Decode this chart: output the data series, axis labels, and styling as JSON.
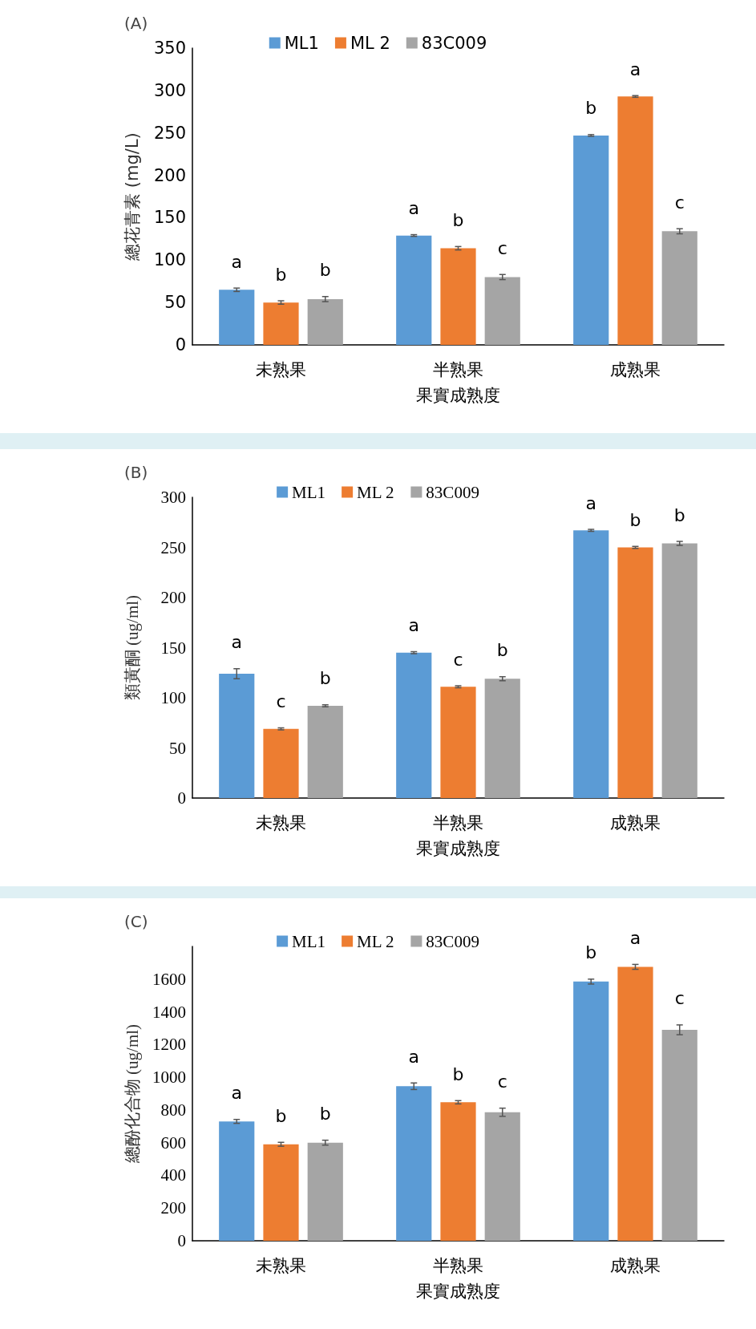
{
  "chart_data": [
    {
      "type": "bar",
      "title": "(A)",
      "xlabel": "果實成熟度",
      "ylabel": "總花青素 (mg/L)",
      "categories": [
        "未熟果",
        "半熟果",
        "成熟果"
      ],
      "series": [
        {
          "name": "ML1",
          "color": "#5b9bd5",
          "values": [
            65,
            129,
            247
          ],
          "errors": [
            2,
            1,
            1
          ],
          "value_labels": [
            "a",
            "a",
            "b"
          ]
        },
        {
          "name": "ML 2",
          "color": "#ed7d31",
          "values": [
            50,
            114,
            293
          ],
          "errors": [
            2,
            2,
            1
          ],
          "value_labels": [
            "b",
            "b",
            "a"
          ]
        },
        {
          "name": "83C009",
          "color": "#a5a5a5",
          "values": [
            54,
            80,
            134
          ],
          "errors": [
            3,
            3,
            3
          ],
          "value_labels": [
            "b",
            "c",
            "c"
          ]
        }
      ],
      "ylim": [
        0,
        350
      ],
      "yticks": [
        0,
        50,
        100,
        150,
        200,
        250,
        300,
        350
      ],
      "grid": false,
      "legend": "top"
    },
    {
      "type": "bar",
      "title": "(B)",
      "xlabel": "果實成熟度",
      "ylabel": "類黃酮 (ug/ml)",
      "categories": [
        "未熟果",
        "半熟果",
        "成熟果"
      ],
      "series": [
        {
          "name": "ML1",
          "color": "#5b9bd5",
          "values": [
            124,
            145,
            267
          ],
          "errors": [
            5,
            1,
            1
          ],
          "value_labels": [
            "a",
            "a",
            "a"
          ]
        },
        {
          "name": "ML 2",
          "color": "#ed7d31",
          "values": [
            69,
            111,
            250
          ],
          "errors": [
            1,
            1,
            1
          ],
          "value_labels": [
            "c",
            "c",
            "b"
          ]
        },
        {
          "name": "83C009",
          "color": "#a5a5a5",
          "values": [
            92,
            119,
            254
          ],
          "errors": [
            1,
            2,
            2
          ],
          "value_labels": [
            "b",
            "b",
            "b"
          ]
        }
      ],
      "ylim": [
        0,
        300
      ],
      "yticks": [
        0,
        50,
        100,
        150,
        200,
        250,
        300
      ],
      "grid": false,
      "legend": "top"
    },
    {
      "type": "bar",
      "title": "(C)",
      "xlabel": "果實成熟度",
      "ylabel": "總酚化合物 (ug/ml)",
      "categories": [
        "未熟果",
        "半熟果",
        "成熟果"
      ],
      "series": [
        {
          "name": "ML1",
          "color": "#5b9bd5",
          "values": [
            730,
            945,
            1585
          ],
          "errors": [
            12,
            20,
            15
          ],
          "value_labels": [
            "a",
            "a",
            "b"
          ]
        },
        {
          "name": "ML 2",
          "color": "#ed7d31",
          "values": [
            590,
            847,
            1675
          ],
          "errors": [
            12,
            10,
            15
          ],
          "value_labels": [
            "b",
            "b",
            "a"
          ]
        },
        {
          "name": "83C009",
          "color": "#a5a5a5",
          "values": [
            600,
            786,
            1290
          ],
          "errors": [
            15,
            25,
            30
          ],
          "value_labels": [
            "b",
            "c",
            "c"
          ]
        }
      ],
      "ylim": [
        0,
        1800
      ],
      "yticks": [
        0,
        200,
        400,
        600,
        800,
        1000,
        1200,
        1400,
        1600
      ],
      "grid": false,
      "legend": "top"
    }
  ]
}
